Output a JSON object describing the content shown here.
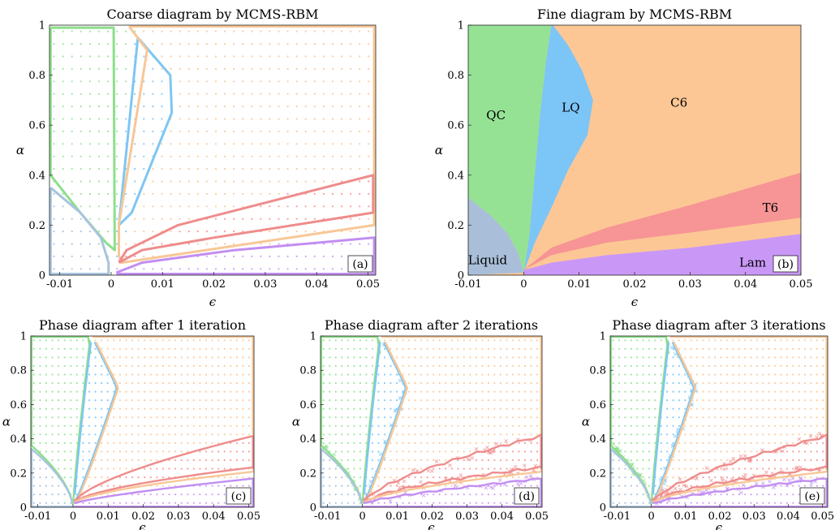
{
  "colors": {
    "QC": "#95e295",
    "LQ": "#7cc5f7",
    "C6": "#fcc795",
    "T6": "#f79495",
    "Lam": "#c998f7",
    "Liquid": "#a9bfd9",
    "green_line": "#8ddf8b",
    "blue_line": "#7ec6f2",
    "orange_line": "#f8c796",
    "red_line": "#ef8c8c",
    "purple_line": "#c28ef2",
    "grey_line": "#a8c4de"
  },
  "chart_data": [
    {
      "id": "a",
      "type": "scatter",
      "title": "Coarse diagram by MCMS-RBM",
      "xlabel": "ϵ",
      "ylabel": "α",
      "panel_tag": "(a)",
      "xlim": [
        -0.012,
        0.0515
      ],
      "ylim": [
        0,
        1
      ],
      "xticks": [
        -0.01,
        0,
        0.01,
        0.02,
        0.03,
        0.04,
        0.05
      ],
      "xtick_labels": [
        "-0.01",
        "0",
        "0.01",
        "0.02",
        "0.03",
        "0.04",
        "0.05"
      ],
      "yticks": [
        0,
        0.2,
        0.4,
        0.6,
        0.8,
        1
      ],
      "ytick_labels": [
        "0",
        "0.2",
        "0.4",
        "0.6",
        "0.8",
        "1"
      ],
      "sample_grid": {
        "x_step": 0.00175,
        "y_step": 0.05
      },
      "boundaries": [
        {
          "phase": "QC",
          "points": [
            [
              -0.0118,
              0.99
            ],
            [
              -0.0118,
              0.4
            ],
            [
              -0.006,
              0.25
            ],
            [
              -0.001,
              0.13
            ],
            [
              0.0007,
              0.1
            ],
            [
              0.0005,
              0.97
            ],
            [
              0.0005,
              0.99
            ],
            [
              -0.0118,
              0.99
            ]
          ]
        },
        {
          "phase": "LQ",
          "points": [
            [
              0.0015,
              0.2
            ],
            [
              0.0052,
              0.95
            ],
            [
              0.0115,
              0.8
            ],
            [
              0.0118,
              0.65
            ],
            [
              0.004,
              0.25
            ],
            [
              0.0015,
              0.2
            ]
          ]
        },
        {
          "phase": "C6",
          "points": [
            [
              0.0035,
              0.995
            ],
            [
              0.0512,
              0.995
            ],
            [
              0.0512,
              0.2
            ],
            [
              0.002,
              0.05
            ],
            [
              0.0015,
              0.08
            ],
            [
              0.0015,
              0.2
            ],
            [
              0.007,
              0.9
            ],
            [
              0.0035,
              0.995
            ]
          ]
        },
        {
          "phase": "T6",
          "points": [
            [
              0.0015,
              0.05
            ],
            [
              0.003,
              0.1
            ],
            [
              0.013,
              0.2
            ],
            [
              0.051,
              0.4
            ],
            [
              0.051,
              0.25
            ],
            [
              0.02,
              0.15
            ],
            [
              0.006,
              0.1
            ],
            [
              0.0015,
              0.05
            ]
          ]
        },
        {
          "phase": "Lam",
          "points": [
            [
              0.001,
              0.01
            ],
            [
              0.006,
              0.05
            ],
            [
              0.024,
              0.1
            ],
            [
              0.0512,
              0.15
            ],
            [
              0.0512,
              0.005
            ],
            [
              0.001,
              0.005
            ]
          ]
        },
        {
          "phase": "Liquid",
          "points": [
            [
              -0.0118,
              0.35
            ],
            [
              -0.006,
              0.25
            ],
            [
              -0.002,
              0.15
            ],
            [
              -0.0005,
              0.05
            ],
            [
              -0.0005,
              0.005
            ],
            [
              -0.0118,
              0.005
            ],
            [
              -0.0118,
              0.35
            ]
          ]
        }
      ]
    },
    {
      "id": "b",
      "type": "area",
      "title": "Fine diagram by MCMS-RBM",
      "xlabel": "ϵ",
      "ylabel": "α",
      "panel_tag": "(b)",
      "xlim": [
        -0.01,
        0.05
      ],
      "ylim": [
        0,
        1
      ],
      "xticks": [
        -0.01,
        0,
        0.01,
        0.02,
        0.03,
        0.04,
        0.05
      ],
      "xtick_labels": [
        "-0.01",
        "0",
        "0.01",
        "0.02",
        "0.03",
        "0.04",
        "0.05"
      ],
      "yticks": [
        0,
        0.2,
        0.4,
        0.6,
        0.8,
        1
      ],
      "ytick_labels": [
        "0",
        "0.2",
        "0.4",
        "0.6",
        "0.8",
        "1"
      ],
      "region_labels": [
        {
          "phase": "QC",
          "text": "QC",
          "x": -0.005,
          "y": 0.64
        },
        {
          "phase": "LQ",
          "text": "LQ",
          "x": 0.0085,
          "y": 0.67
        },
        {
          "phase": "C6",
          "text": "C6",
          "x": 0.028,
          "y": 0.69
        },
        {
          "phase": "T6",
          "text": "T6",
          "x": 0.0445,
          "y": 0.27
        },
        {
          "phase": "Liquid",
          "text": "Liquid",
          "x": -0.0065,
          "y": 0.06
        },
        {
          "phase": "Lam",
          "text": "Lam",
          "x": 0.0413,
          "y": 0.05
        }
      ],
      "boundaries": [
        {
          "name": "QC-Liquid",
          "points": [
            [
              -0.01,
              0.31
            ],
            [
              -0.006,
              0.24
            ],
            [
              -0.003,
              0.17
            ],
            [
              -0.001,
              0.09
            ],
            [
              0,
              0.01
            ]
          ]
        },
        {
          "name": "QC-LQ",
          "points": [
            [
              0,
              0.01
            ],
            [
              0.001,
              0.15
            ],
            [
              0.002,
              0.4
            ],
            [
              0.003,
              0.65
            ],
            [
              0.004,
              0.85
            ],
            [
              0.005,
              1.0
            ]
          ]
        },
        {
          "name": "LQ-C6",
          "points": [
            [
              0.0053,
              1.0
            ],
            [
              0.008,
              0.92
            ],
            [
              0.0105,
              0.82
            ],
            [
              0.0125,
              0.7
            ],
            [
              0.0115,
              0.56
            ],
            [
              0.008,
              0.42
            ],
            [
              0.005,
              0.27
            ],
            [
              0.002,
              0.13
            ],
            [
              0,
              0.01
            ]
          ]
        },
        {
          "name": "C6-T6 upper",
          "points": [
            [
              0,
              0.02
            ],
            [
              0.005,
              0.11
            ],
            [
              0.015,
              0.19
            ],
            [
              0.03,
              0.28
            ],
            [
              0.05,
              0.41
            ]
          ]
        },
        {
          "name": "T6-C6 lower",
          "points": [
            [
              0,
              0.02
            ],
            [
              0.005,
              0.08
            ],
            [
              0.015,
              0.13
            ],
            [
              0.03,
              0.17
            ],
            [
              0.05,
              0.23
            ]
          ]
        },
        {
          "name": "C6-Lam",
          "points": [
            [
              0,
              0.02
            ],
            [
              0.005,
              0.05
            ],
            [
              0.015,
              0.08
            ],
            [
              0.03,
              0.11
            ],
            [
              0.05,
              0.165
            ]
          ]
        }
      ]
    },
    {
      "id": "c",
      "type": "scatter",
      "title": "Phase diagram after 1 iteration",
      "xlabel": "ϵ",
      "ylabel": "α",
      "panel_tag": "(c)",
      "xlim": [
        -0.012,
        0.0515
      ],
      "ylim": [
        0,
        1
      ],
      "xticks": [
        -0.01,
        0,
        0.01,
        0.02,
        0.03,
        0.04,
        0.05
      ],
      "xtick_labels": [
        "-0.01",
        "0",
        "0.01",
        "0.02",
        "0.03",
        "0.04",
        "0.05"
      ],
      "yticks": [
        0,
        0.2,
        0.4,
        0.6,
        0.8,
        1
      ],
      "ytick_labels": [
        "0",
        "0.2",
        "0.4",
        "0.6",
        "0.8",
        "1"
      ],
      "sample_grid": {
        "x_step": 0.00175,
        "y_step": 0.05
      }
    },
    {
      "id": "d",
      "type": "scatter",
      "title": "Phase diagram after 2 iterations",
      "xlabel": "ϵ",
      "ylabel": "α",
      "panel_tag": "(d)",
      "xlim": [
        -0.012,
        0.0515
      ],
      "ylim": [
        0,
        1
      ],
      "xticks": [
        -0.01,
        0,
        0.01,
        0.02,
        0.03,
        0.04,
        0.05
      ],
      "xtick_labels": [
        "-0.01",
        "0",
        "0.01",
        "0.02",
        "0.03",
        "0.04",
        "0.05"
      ],
      "yticks": [
        0,
        0.2,
        0.4,
        0.6,
        0.8,
        1
      ],
      "ytick_labels": [
        "0",
        "0.2",
        "0.4",
        "0.6",
        "0.8",
        "1"
      ],
      "sample_grid": {
        "x_step": 0.00175,
        "y_step": 0.05
      }
    },
    {
      "id": "e",
      "type": "scatter",
      "title": "Phase diagram after 3 iterations",
      "xlabel": "ϵ",
      "ylabel": "α",
      "panel_tag": "(e)",
      "xlim": [
        -0.012,
        0.0515
      ],
      "ylim": [
        0,
        1
      ],
      "xticks": [
        -0.01,
        0,
        0.01,
        0.02,
        0.03,
        0.04,
        0.05
      ],
      "xtick_labels": [
        "-0.01",
        "0",
        "0.01",
        "0.02",
        "0.03",
        "0.04",
        "0.05"
      ],
      "yticks": [
        0,
        0.2,
        0.4,
        0.6,
        0.8,
        1
      ],
      "ytick_labels": [
        "0",
        "0.2",
        "0.4",
        "0.6",
        "0.8",
        "1"
      ],
      "sample_grid": {
        "x_step": 0.00175,
        "y_step": 0.05
      }
    }
  ]
}
